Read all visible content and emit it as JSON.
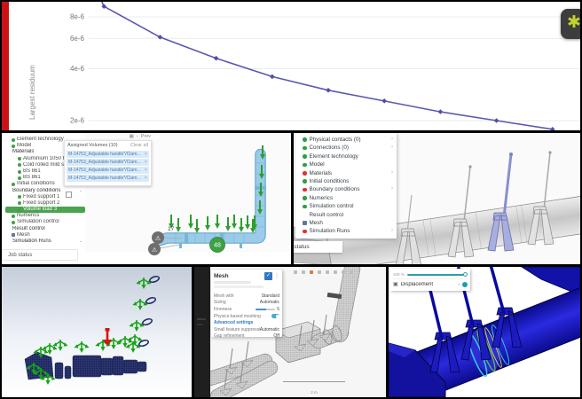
{
  "icons": {
    "close": "×",
    "chevron_down": "⌄",
    "chevron_right": "›",
    "back": "‹",
    "grid": "▦",
    "check": "✓",
    "dots": "⋮",
    "asterisk": "✱",
    "warning": "⚠",
    "cube": "▣",
    "dot": "▪"
  },
  "chart_data": {
    "type": "line",
    "ylabel": "Largest residuum",
    "yscale": "log",
    "x_values": [
      1,
      2,
      3,
      4,
      5,
      6,
      7,
      8,
      9,
      10
    ],
    "values": [
      5e-05,
      9.2e-06,
      6.1e-06,
      4.6e-06,
      3.6e-06,
      3e-06,
      2.6e-06,
      2.25e-06,
      2e-06,
      1.78e-06
    ],
    "yticks": [
      8e-06,
      6e-06,
      4e-06,
      2e-06
    ],
    "ytick_labels": [
      "8e-6",
      "6e-6",
      "4e-6",
      "2e-6"
    ],
    "line_color": "#5a58b2",
    "marker_color": "#4f4da8",
    "grid": true,
    "legend": "none"
  },
  "simscale_left": {
    "toolbar_label": "Prev",
    "tree": [
      {
        "label": "Element technology",
        "cls": "ind1 st-green",
        "chev": ""
      },
      {
        "label": "Model",
        "cls": "ind1 st-green",
        "chev": ""
      },
      {
        "label": "Materials",
        "cls": "ind0 st-none",
        "chev": "⌄"
      },
      {
        "label": "Aluminium 1050 H14",
        "cls": "ind2 st-green",
        "chev": ""
      },
      {
        "label": "Cold rolled mild steel",
        "cls": "ind2 st-green",
        "chev": ""
      },
      {
        "label": "BS 861",
        "cls": "ind2 st-green",
        "chev": ""
      },
      {
        "label": "BS 861",
        "cls": "ind2 st-green",
        "chev": ""
      },
      {
        "label": "Initial conditions",
        "cls": "ind1 st-green",
        "chev": ""
      },
      {
        "label": "Boundary conditions",
        "cls": "ind0 st-none",
        "chev": "⌄"
      },
      {
        "label": "Fixed support 1",
        "cls": "ind2 st-green",
        "chev": ""
      },
      {
        "label": "Fixed support 2",
        "cls": "ind2 st-green",
        "chev": ""
      },
      {
        "label": "Volume load 3",
        "cls": "ind2 st-green sel",
        "chev": ""
      },
      {
        "label": "Numerics",
        "cls": "ind1 st-green",
        "chev": ""
      },
      {
        "label": "Simulation control",
        "cls": "ind1 st-green",
        "chev": ""
      },
      {
        "label": "Result control",
        "cls": "ind0 st-none",
        "chev": ""
      },
      {
        "label": "Mesh",
        "cls": "ind1 st-mesh",
        "chev": ""
      },
      {
        "label": "Simulation Runs",
        "cls": "ind0 st-none",
        "chev": "⌄"
      }
    ],
    "assigned_card": {
      "title": "Assigned Volumes (10)",
      "action": "Clear all",
      "rows": [
        {
          "label": "M-14753_Adjustable handle*/Clamp 1"
        },
        {
          "label": "M-14753_Adjustable handle*/Clamp 2"
        },
        {
          "label": "M-14753_Adjustable handle*/Clamp 3"
        },
        {
          "label": "M-14753_Adjustable handle*/Clamp 4"
        }
      ]
    },
    "job_status": "Job status",
    "badge_warning_label": "17",
    "badge_green_label": "48"
  },
  "simscale_right": {
    "menu": [
      {
        "label": "Physical contacts (0)",
        "cls": "st-green",
        "chev": "›"
      },
      {
        "label": "Connections (0)",
        "cls": "st-green",
        "chev": "›"
      },
      {
        "label": "Element technology",
        "cls": "st-green",
        "chev": ""
      },
      {
        "label": "Model",
        "cls": "st-green",
        "chev": ""
      },
      {
        "label": "Materials",
        "cls": "st-red",
        "chev": "›"
      },
      {
        "label": "Initial conditions",
        "cls": "st-green",
        "chev": ""
      },
      {
        "label": "Boundary conditions",
        "cls": "st-red",
        "chev": "›"
      },
      {
        "label": "Numerics",
        "cls": "st-green",
        "chev": ""
      },
      {
        "label": "Simulation control",
        "cls": "st-green",
        "chev": ""
      },
      {
        "label": "Result control",
        "cls": "st-none",
        "chev": ""
      },
      {
        "label": "Mesh",
        "cls": "st-mesh",
        "chev": ""
      },
      {
        "label": "Simulation Runs",
        "cls": "st-red",
        "chev": "›"
      }
    ],
    "job_status": "Job status"
  },
  "mesh_panel": {
    "dialog": {
      "title": "Mesh",
      "rows": [
        {
          "label": "Mesh with",
          "value": "Standard",
          "cls": ""
        },
        {
          "label": "Sizing",
          "value": "Automatic",
          "cls": ""
        },
        {
          "label": "Fineness",
          "value": "5",
          "cls": "slider"
        },
        {
          "label": "Physics-based meshing",
          "value": "",
          "cls": "toggle"
        },
        {
          "label": "Advanced settings",
          "value": "",
          "cls": "section"
        },
        {
          "label": "Small feature suppression",
          "value": "Automatic",
          "cls": ""
        },
        {
          "label": "Gap refinement",
          "value": "Off",
          "cls": ""
        }
      ]
    },
    "scale_label": "2 m"
  },
  "result_panel": {
    "overlay": {
      "value": "100 %",
      "field": "Displacement"
    }
  }
}
